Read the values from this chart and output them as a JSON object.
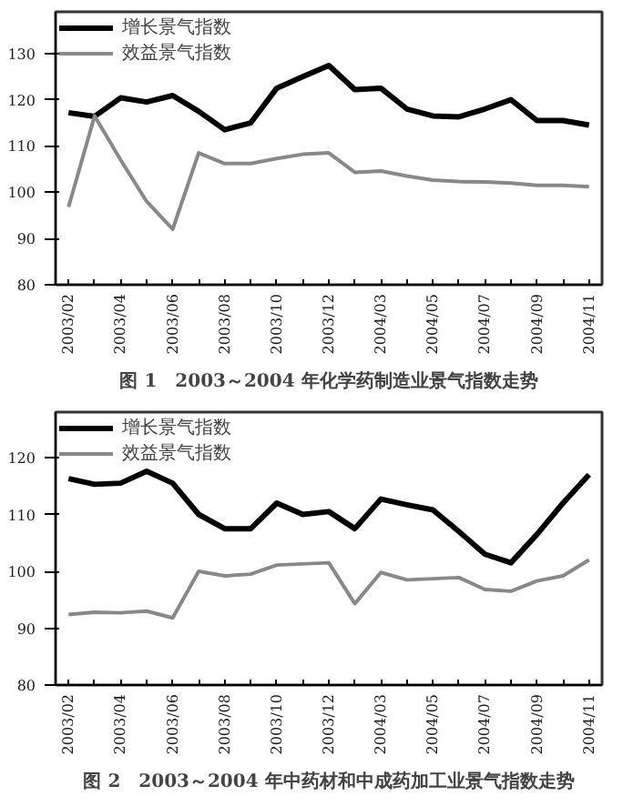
{
  "chart_data": [
    {
      "type": "line",
      "title": "图 1　2003～2004 年化学药制造业景气指数走势",
      "categories": [
        "2003/02",
        null,
        "2003/04",
        null,
        "2003/06",
        null,
        "2003/08",
        null,
        "2003/10",
        null,
        "2003/12",
        null,
        "2004/03",
        null,
        "2004/05",
        null,
        "2004/07",
        null,
        "2004/09",
        null,
        "2004/11"
      ],
      "series": [
        {
          "name": "增长景气指数",
          "color": "#000000",
          "values": [
            117.2,
            116.4,
            120.4,
            119.5,
            120.9,
            117.5,
            113.5,
            115,
            122.5,
            125,
            127.4,
            122.2,
            122.5,
            118,
            116.5,
            116.3,
            118,
            120,
            115.5,
            115.5,
            114.5
          ]
        },
        {
          "name": "效益景气指数",
          "color": "#888888",
          "values": [
            96.8,
            116.5,
            107,
            98,
            92,
            108.5,
            106.2,
            106.2,
            107.3,
            108.2,
            108.5,
            104.3,
            104.6,
            103.5,
            102.6,
            102.3,
            102.2,
            102,
            101.5,
            101.5,
            101.2
          ]
        }
      ],
      "ylim": [
        80,
        139
      ],
      "yticks": [
        80,
        90,
        100,
        110,
        120,
        130
      ],
      "grid": false,
      "legend": "top left",
      "marker": "none",
      "line_style": "solid"
    },
    {
      "type": "line",
      "title": "图 2　2003～2004 年中药材和中成药加工业景气指数走势",
      "categories": [
        "2003/02",
        null,
        "2003/04",
        null,
        "2003/06",
        null,
        "2003/08",
        null,
        "2003/10",
        null,
        "2003/12",
        null,
        "2004/03",
        null,
        "2004/05",
        null,
        "2004/07",
        null,
        "2004/09",
        null,
        "2004/11"
      ],
      "series": [
        {
          "name": "增长景气指数",
          "color": "#000000",
          "values": [
            116.3,
            115.3,
            115.5,
            117.6,
            115.5,
            110,
            107.5,
            107.5,
            112,
            110,
            110.5,
            107.5,
            112.7,
            111.7,
            110.8,
            107,
            103,
            101.5,
            106.5,
            112,
            117
          ]
        },
        {
          "name": "效益景气指数",
          "color": "#888888",
          "values": [
            92.4,
            92.8,
            92.7,
            93,
            91.8,
            100,
            99.2,
            99.5,
            101.1,
            101.3,
            101.5,
            94.3,
            99.8,
            98.5,
            98.7,
            98.9,
            96.8,
            96.5,
            98.3,
            99.2,
            102
          ]
        }
      ],
      "ylim": [
        80,
        128
      ],
      "yticks": [
        80,
        90,
        100,
        110,
        120
      ],
      "grid": false,
      "legend": "top left",
      "marker": "none",
      "line_style": "solid"
    }
  ]
}
